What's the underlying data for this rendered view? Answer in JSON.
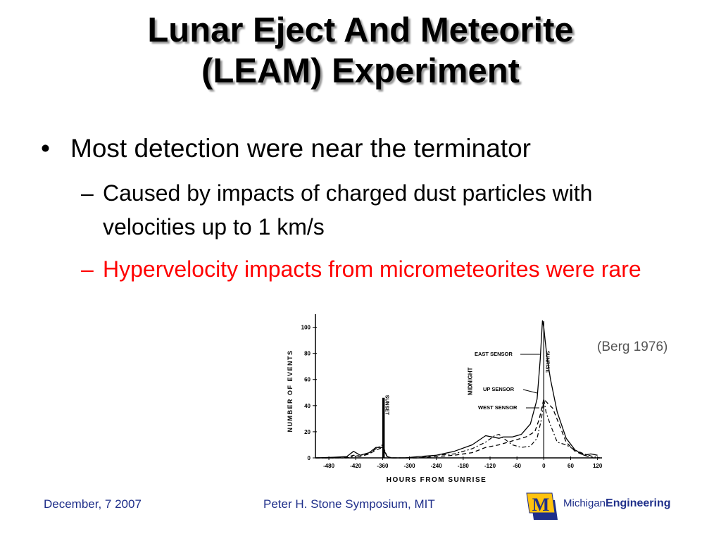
{
  "slide": {
    "title_line1": "Lunar Eject And Meteorite",
    "title_line2": "(LEAM) Experiment",
    "bullet1": {
      "marker": "•",
      "text": "Most detection were near the terminator"
    },
    "subbullets": [
      {
        "marker": "–",
        "text": "Caused by impacts of charged dust particles with velocities up to 1 km/s",
        "color": "#000000"
      },
      {
        "marker": "–",
        "text": "Hypervelocity impacts from micrometeorites were rare",
        "color": "#ff0000"
      }
    ],
    "citation": "(Berg 1976)"
  },
  "figure": {
    "ylabel": "NUMBER OF EVENTS",
    "xlabel": "HOURS FROM SUNRISE",
    "yticks": [
      "100",
      "80",
      "60",
      "40",
      "20",
      "0"
    ],
    "xticks": [
      "-480",
      "-420",
      "-360",
      "-300",
      "-240",
      "-180",
      "-120",
      "-60",
      "0",
      "60",
      "120"
    ],
    "annotations": {
      "sunset": "SUNSET",
      "midnight": "MIDNIGHT",
      "sunrise": "SUNRISE",
      "east": "EAST SENSOR",
      "up": "UP SENSOR",
      "west": "WEST SENSOR"
    }
  },
  "chart_data": {
    "type": "line",
    "title": "",
    "xlabel": "HOURS FROM SUNRISE",
    "ylabel": "NUMBER OF EVENTS",
    "xlim": [
      -510,
      130
    ],
    "ylim": [
      0,
      110
    ],
    "series": [
      {
        "name": "EAST SENSOR",
        "x": [
          -510,
          -470,
          -440,
          -425,
          -410,
          -390,
          -375,
          -360,
          -350,
          -340,
          -310,
          -280,
          -240,
          -200,
          -160,
          -130,
          -100,
          -90,
          -70,
          -50,
          -30,
          -15,
          -8,
          -3,
          0,
          3,
          8,
          15,
          30,
          50,
          70,
          90,
          105,
          120
        ],
        "values": [
          0,
          0.5,
          1,
          5,
          2,
          4,
          8,
          8,
          1,
          0,
          0,
          1,
          2,
          5,
          10,
          17,
          15,
          16,
          16,
          18,
          26,
          45,
          75,
          105,
          100,
          90,
          75,
          60,
          35,
          15,
          6,
          2,
          3,
          2
        ]
      },
      {
        "name": "UP SENSOR",
        "x": [
          -510,
          -470,
          -440,
          -425,
          -410,
          -390,
          -375,
          -360,
          -350,
          -340,
          -310,
          -280,
          -240,
          -200,
          -160,
          -130,
          -100,
          -80,
          -60,
          -40,
          -20,
          -10,
          0,
          8,
          20,
          35,
          50,
          70,
          90,
          110,
          125
        ],
        "values": [
          0,
          0,
          0.5,
          2,
          1,
          3,
          6,
          8,
          1,
          0,
          0,
          0,
          1,
          2,
          4,
          8,
          10,
          12,
          14,
          16,
          20,
          30,
          45,
          42,
          38,
          25,
          12,
          5,
          2,
          0,
          0
        ]
      },
      {
        "name": "WEST SENSOR",
        "x": [
          -510,
          -470,
          -440,
          -425,
          -410,
          -390,
          -375,
          -360,
          -350,
          -340,
          -310,
          -280,
          -240,
          -200,
          -160,
          -130,
          -110,
          -100,
          -90,
          -70,
          -50,
          -30,
          -15,
          -5,
          0,
          5,
          15,
          30,
          50,
          70,
          90,
          110,
          125
        ],
        "values": [
          0,
          0,
          0,
          1,
          2,
          3,
          7,
          10,
          1,
          0,
          0,
          0,
          2,
          3,
          7,
          12,
          17,
          18,
          15,
          10,
          8,
          9,
          15,
          30,
          45,
          35,
          25,
          12,
          10,
          6,
          3,
          1,
          0
        ]
      }
    ],
    "markers": [
      {
        "label": "SUNSET",
        "x": -358,
        "peak": 46
      },
      {
        "label": "SUNRISE",
        "x": 0
      }
    ]
  },
  "footer": {
    "date": "December, 7 2007",
    "event": "Peter H. Stone Symposium, MIT",
    "logo_text_regular": "Michigan",
    "logo_text_bold": "Engineering",
    "logo_letter": "M",
    "brand_blue": "#1f2f8a",
    "maize": "#ffc20e"
  }
}
